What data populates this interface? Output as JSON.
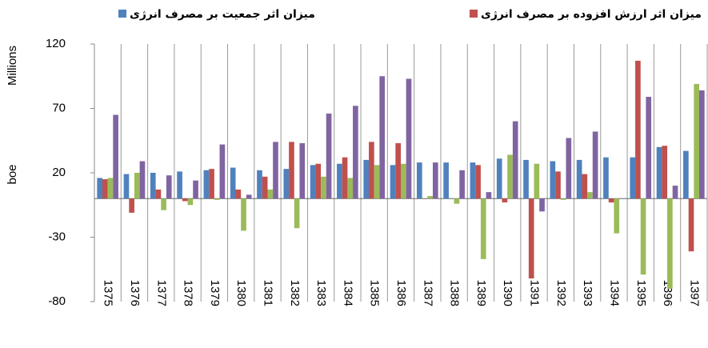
{
  "chart_data": {
    "type": "bar",
    "y_unit": "Millions",
    "y_label": "boe",
    "categories": [
      "1375",
      "1376",
      "1377",
      "1378",
      "1379",
      "1380",
      "1381",
      "1382",
      "1383",
      "1384",
      "1385",
      "1386",
      "1387",
      "1388",
      "1389",
      "1390",
      "1391",
      "1392",
      "1393",
      "1394",
      "1395",
      "1396",
      "1397"
    ],
    "series": [
      {
        "name": "میزان اثر جمعیت بر مصرف انرژی",
        "color": "#4f81bd",
        "values": [
          16,
          19,
          20,
          21,
          22,
          24,
          22,
          23,
          26,
          27,
          30,
          26,
          28,
          28,
          28,
          31,
          30,
          29,
          30,
          32,
          32,
          40,
          37
        ]
      },
      {
        "name": "میزان اثر ارزش افزوده بر مصرف انرژی",
        "color": "#c0504d",
        "values": [
          15,
          -11,
          7,
          -2,
          23,
          7,
          17,
          44,
          27,
          32,
          44,
          43,
          0,
          0,
          26,
          -3,
          -62,
          21,
          19,
          -3,
          107,
          41,
          -41
        ]
      },
      {
        "color": "#9bbb59",
        "values": [
          16,
          20,
          -9,
          -5,
          -1,
          -25,
          7,
          -23,
          17,
          16,
          26,
          27,
          2,
          -4,
          -47,
          34,
          27,
          -1,
          5,
          -27,
          -59,
          -70,
          89
        ]
      },
      {
        "color": "#8064a2",
        "values": [
          65,
          29,
          18,
          14,
          42,
          3,
          44,
          43,
          66,
          72,
          95,
          93,
          28,
          22,
          5,
          60,
          -10,
          47,
          52,
          0,
          79,
          10,
          84
        ]
      }
    ],
    "ylim": [
      -80,
      120
    ],
    "yticks": [
      -80,
      -30,
      20,
      70,
      120
    ],
    "grid": true
  }
}
